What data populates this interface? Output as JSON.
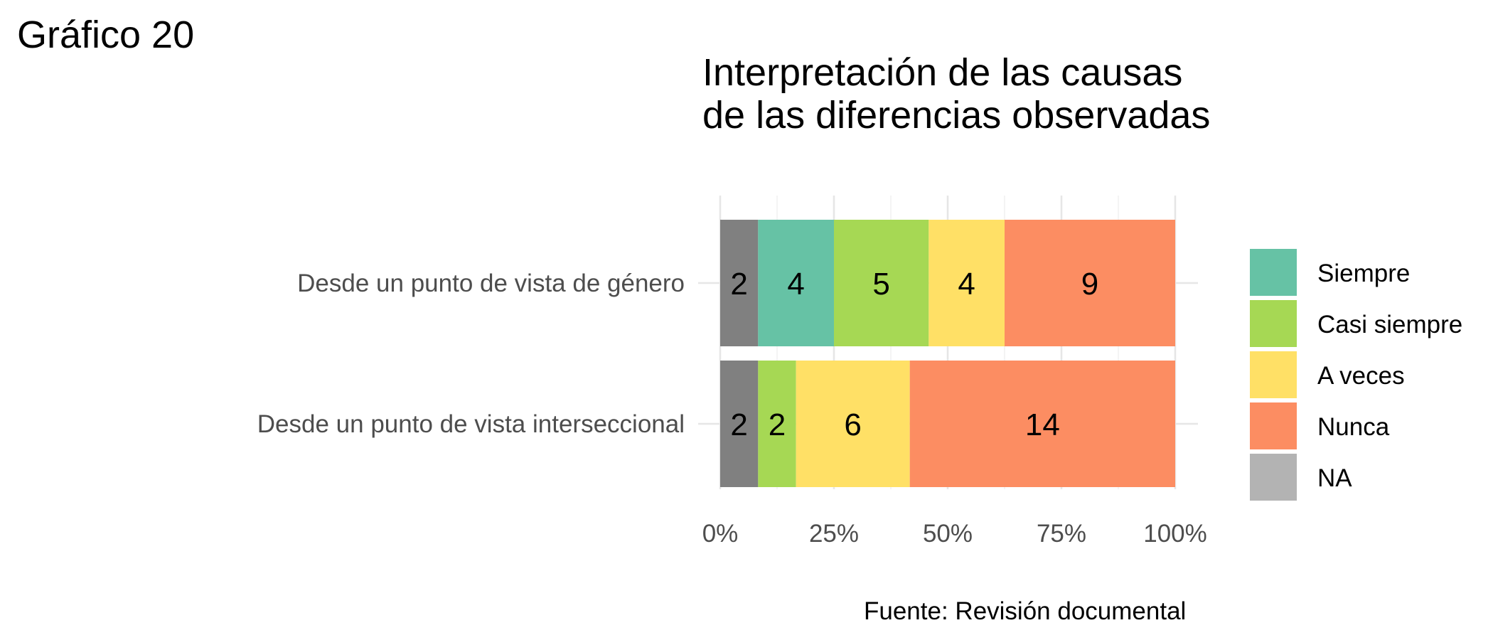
{
  "figure_label": "Gráfico 20",
  "caption": "Fuente: Revisión documental",
  "chart_data": {
    "type": "bar",
    "orientation": "horizontal",
    "stacked": "percent",
    "title_lines": [
      "Interpretación de las causas",
      "de las diferencias observadas"
    ],
    "categories": [
      "Desde un punto de vista de género",
      "Desde un punto de vista interseccional"
    ],
    "series": [
      {
        "name": "NA",
        "color": "#808080",
        "values": [
          2,
          2
        ]
      },
      {
        "name": "Siempre",
        "color": "#66C2A5",
        "values": [
          4,
          0
        ]
      },
      {
        "name": "Casi siempre",
        "color": "#A6D854",
        "values": [
          5,
          2
        ]
      },
      {
        "name": "A veces",
        "color": "#FFE066",
        "values": [
          4,
          6
        ]
      },
      {
        "name": "Nunca",
        "color": "#FC8D62",
        "values": [
          9,
          14
        ]
      }
    ],
    "x_ticks": [
      "0%",
      "25%",
      "50%",
      "75%",
      "100%"
    ],
    "xlim": [
      0,
      1
    ],
    "grid": true,
    "legend": {
      "position": "right",
      "items": [
        {
          "name": "Siempre",
          "color": "#66C2A5"
        },
        {
          "name": "Casi siempre",
          "color": "#A6D854"
        },
        {
          "name": "A veces",
          "color": "#FFE066"
        },
        {
          "name": "Nunca",
          "color": "#FC8D62"
        },
        {
          "name": "NA",
          "color": "#B3B3B3"
        }
      ]
    }
  }
}
